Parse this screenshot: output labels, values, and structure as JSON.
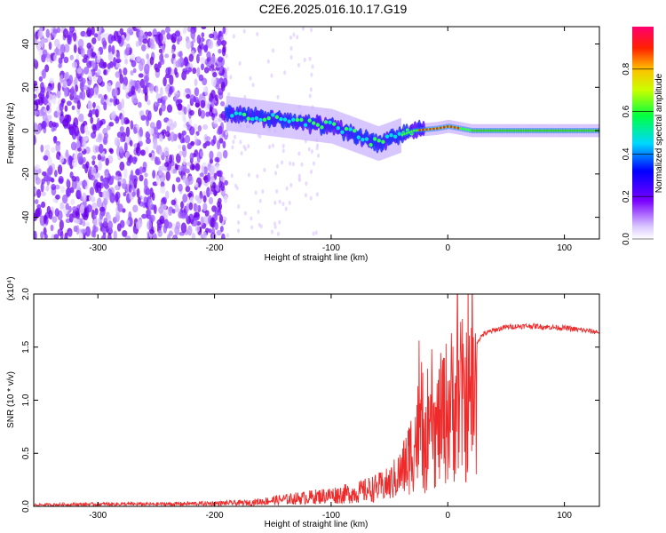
{
  "title": "C2E6.2025.016.10.17.G19",
  "colors": {
    "spectrum": [
      "#ffffff",
      "#c8a8ff",
      "#7a00ff",
      "#0000ff",
      "#00ffff",
      "#00ff00",
      "#ffff00",
      "#ff8000",
      "#ff0000",
      "#ff0080"
    ],
    "snr_line": "#ee2a2a"
  },
  "chart_data": [
    {
      "type": "heatmap",
      "title": "C2E6.2025.016.10.17.G19",
      "xlabel": "Height of straight line (km)",
      "ylabel": "Frequency (Hz)",
      "xlim": [
        -355,
        130
      ],
      "ylim": [
        -50,
        48
      ],
      "xticks": [
        -300,
        -200,
        -100,
        0,
        100
      ],
      "yticks": [
        -40,
        -20,
        0,
        20,
        40
      ],
      "colorbar": {
        "label": "Normalized spectral amplitude",
        "range": [
          0,
          1
        ],
        "ticks": [
          "0.0",
          "0.2",
          "0.4",
          "0.6",
          "0.8"
        ]
      },
      "features": [
        {
          "region": "noise",
          "x_range": [
            -355,
            -190
          ],
          "freq_range": [
            -50,
            48
          ]
        },
        {
          "region": "signal_track",
          "points": [
            [
              -190,
              8
            ],
            [
              -160,
              6
            ],
            [
              -130,
              4
            ],
            [
              -100,
              2
            ],
            [
              -80,
              -2
            ],
            [
              -60,
              -6
            ],
            [
              -45,
              -3
            ],
            [
              -30,
              0
            ],
            [
              -10,
              1
            ],
            [
              0,
              2
            ],
            [
              20,
              0
            ],
            [
              130,
              0
            ]
          ]
        }
      ]
    },
    {
      "type": "line",
      "xlabel": "Height of straight line (km)",
      "ylabel": "SNR (10 * v/v)",
      "y_multiplier": "(x10⁴)",
      "xlim": [
        -355,
        130
      ],
      "ylim": [
        0,
        2.0
      ],
      "xticks": [
        -300,
        -200,
        -100,
        0,
        100
      ],
      "yticks": [
        "0.0",
        "0.5",
        "1.0",
        "1.5",
        "2.0"
      ],
      "series": [
        {
          "x": [
            -355,
            -300,
            -250,
            -200,
            -170,
            -150,
            -120,
            -100,
            -80,
            -60,
            -50,
            -40,
            -35,
            -30,
            -25,
            -20,
            -15,
            -10,
            -5,
            0,
            5,
            10,
            15,
            20,
            25,
            30,
            40,
            50,
            70,
            100,
            130
          ],
          "y": [
            0.02,
            0.03,
            0.03,
            0.04,
            0.05,
            0.08,
            0.12,
            0.15,
            0.18,
            0.25,
            0.3,
            0.45,
            0.6,
            0.8,
            1.0,
            0.7,
            0.9,
            1.0,
            1.2,
            1.3,
            1.4,
            1.5,
            1.35,
            1.45,
            1.55,
            1.62,
            1.66,
            1.69,
            1.7,
            1.68,
            1.64
          ]
        }
      ]
    }
  ]
}
